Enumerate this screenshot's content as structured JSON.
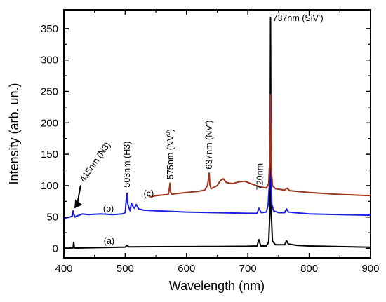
{
  "chart_data": {
    "type": "line",
    "xlabel": "Wavelength (nm)",
    "ylabel": "Intensity (arb. un.)",
    "xlim": [
      400,
      900
    ],
    "ylim": [
      -15,
      380
    ],
    "xticks": [
      400,
      500,
      600,
      700,
      800,
      900
    ],
    "yticks": [
      0,
      50,
      100,
      150,
      200,
      250,
      300,
      350
    ],
    "grid": false,
    "series": [
      {
        "name": "(a)",
        "color": "#000000",
        "points": [
          [
            400,
            0.5
          ],
          [
            410,
            0.6
          ],
          [
            415,
            0.8
          ],
          [
            416,
            10
          ],
          [
            417,
            1
          ],
          [
            420,
            0.6
          ],
          [
            450,
            1.2
          ],
          [
            500,
            2.2
          ],
          [
            503,
            5
          ],
          [
            506,
            2.5
          ],
          [
            550,
            2.8
          ],
          [
            600,
            3
          ],
          [
            650,
            3.2
          ],
          [
            700,
            3.5
          ],
          [
            715,
            4
          ],
          [
            718,
            14
          ],
          [
            721,
            4
          ],
          [
            730,
            4
          ],
          [
            734,
            10
          ],
          [
            736,
            60
          ],
          [
            737,
            368
          ],
          [
            738,
            60
          ],
          [
            740,
            12
          ],
          [
            745,
            6
          ],
          [
            760,
            6
          ],
          [
            763,
            12
          ],
          [
            766,
            7
          ],
          [
            780,
            5
          ],
          [
            800,
            4
          ],
          [
            850,
            3
          ],
          [
            900,
            2
          ]
        ]
      },
      {
        "name": "(b)",
        "color": "#1f1fe0",
        "points": [
          [
            400,
            48
          ],
          [
            410,
            50
          ],
          [
            414,
            52
          ],
          [
            415,
            60
          ],
          [
            416,
            56
          ],
          [
            418,
            50
          ],
          [
            425,
            53
          ],
          [
            430,
            55
          ],
          [
            440,
            54
          ],
          [
            460,
            55
          ],
          [
            480,
            54
          ],
          [
            495,
            55
          ],
          [
            500,
            57
          ],
          [
            501,
            70
          ],
          [
            502,
            80
          ],
          [
            503,
            88
          ],
          [
            504,
            72
          ],
          [
            506,
            65
          ],
          [
            508,
            60
          ],
          [
            510,
            72
          ],
          [
            512,
            68
          ],
          [
            515,
            64
          ],
          [
            518,
            70
          ],
          [
            522,
            63
          ],
          [
            530,
            61
          ],
          [
            550,
            60
          ],
          [
            600,
            58
          ],
          [
            650,
            57
          ],
          [
            700,
            56
          ],
          [
            715,
            56
          ],
          [
            718,
            64
          ],
          [
            720,
            60
          ],
          [
            722,
            57
          ],
          [
            730,
            58
          ],
          [
            733,
            68
          ],
          [
            735,
            100
          ],
          [
            736,
            180
          ],
          [
            737,
            245
          ],
          [
            738,
            120
          ],
          [
            739,
            70
          ],
          [
            742,
            60
          ],
          [
            750,
            57
          ],
          [
            760,
            57
          ],
          [
            763,
            63
          ],
          [
            766,
            58
          ],
          [
            800,
            55
          ],
          [
            850,
            54
          ],
          [
            900,
            53
          ]
        ]
      },
      {
        "name": "(c)",
        "color": "#a0351d",
        "points": [
          [
            540,
            82
          ],
          [
            550,
            84
          ],
          [
            560,
            85
          ],
          [
            570,
            86
          ],
          [
            572,
            95
          ],
          [
            573,
            104
          ],
          [
            574,
            90
          ],
          [
            576,
            86
          ],
          [
            580,
            87
          ],
          [
            600,
            89
          ],
          [
            620,
            91
          ],
          [
            630,
            93
          ],
          [
            634,
            100
          ],
          [
            636,
            112
          ],
          [
            637,
            120
          ],
          [
            638,
            102
          ],
          [
            640,
            95
          ],
          [
            650,
            100
          ],
          [
            655,
            108
          ],
          [
            660,
            111
          ],
          [
            665,
            105
          ],
          [
            675,
            103
          ],
          [
            685,
            106
          ],
          [
            695,
            107
          ],
          [
            705,
            103
          ],
          [
            720,
            98
          ],
          [
            730,
            96
          ],
          [
            734,
            103
          ],
          [
            736,
            150
          ],
          [
            737,
            245
          ],
          [
            738,
            130
          ],
          [
            740,
            100
          ],
          [
            745,
            95
          ],
          [
            760,
            93
          ],
          [
            764,
            96
          ],
          [
            768,
            92
          ],
          [
            800,
            89
          ],
          [
            850,
            86
          ],
          [
            900,
            84
          ]
        ]
      }
    ],
    "annotations": [
      {
        "text": "415nm (N3)",
        "x": 417,
        "y": 105
      },
      {
        "text": "503nm (H3)",
        "x": 503,
        "y": 97
      },
      {
        "text": "575nm (NV",
        "sup": "0",
        "tail": ")",
        "x": 574,
        "y": 110
      },
      {
        "text": "637nm (NV",
        "sup": "-",
        "tail": ")",
        "x": 637,
        "y": 126
      },
      {
        "text": "720nm",
        "x": 720,
        "y": 93
      },
      {
        "text": "737nm (SiV",
        "sup": "-",
        "tail": ")",
        "x": 737,
        "y": 368
      }
    ],
    "curve_labels": [
      {
        "text": "(a)",
        "x": 465,
        "y": 12
      },
      {
        "text": "(b)",
        "x": 464,
        "y": 63
      },
      {
        "text": "(c)",
        "x": 530,
        "y": 87
      }
    ]
  }
}
